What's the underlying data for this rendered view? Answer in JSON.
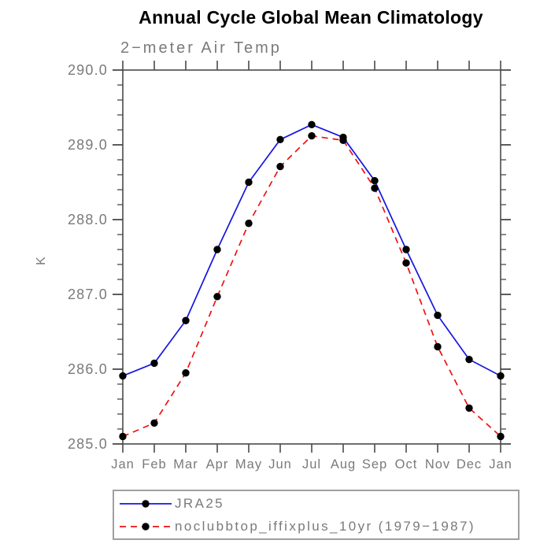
{
  "header": {
    "title": "Annual Cycle Global Mean Climatology",
    "subtitle": "2−meter Air Temp"
  },
  "chart_data": {
    "type": "line",
    "title": "Annual Cycle Global Mean Climatology",
    "subtitle": "2−meter Air Temp",
    "xlabel": "",
    "ylabel": "K",
    "categories": [
      "Jan",
      "Feb",
      "Mar",
      "Apr",
      "May",
      "Jun",
      "Jul",
      "Aug",
      "Sep",
      "Oct",
      "Nov",
      "Dec",
      "Jan"
    ],
    "ylim": [
      285.0,
      290.0
    ],
    "ytick_major_interval": 1.0,
    "ytick_minor_interval": 0.2,
    "ytick_labels": [
      "285.0",
      "286.0",
      "287.0",
      "288.0",
      "289.0",
      "290.0"
    ],
    "grid": false,
    "legend_position": "bottom-left",
    "series": [
      {
        "name": "JRA25",
        "color": "#1515e0",
        "style": "solid",
        "marker": "circle",
        "marker_color": "#000000",
        "values": [
          285.91,
          286.08,
          286.65,
          287.6,
          288.5,
          289.07,
          289.27,
          289.1,
          288.52,
          287.6,
          286.72,
          286.13,
          285.91
        ]
      },
      {
        "name": "noclubbtop_iffixplus_10yr (1979−1987)",
        "color": "#ee1111",
        "style": "dashed",
        "marker": "circle",
        "marker_color": "#000000",
        "values": [
          285.1,
          285.28,
          285.95,
          286.97,
          287.95,
          288.71,
          289.12,
          289.06,
          288.42,
          287.42,
          286.3,
          285.48,
          285.1
        ]
      }
    ]
  },
  "colors": {
    "axis": "#4a4a4a",
    "tick": "#4a4a4a",
    "label_text": "#7a7a7a",
    "title_text": "#000000",
    "legend_border": "#a0a0a0",
    "background": "#ffffff"
  }
}
